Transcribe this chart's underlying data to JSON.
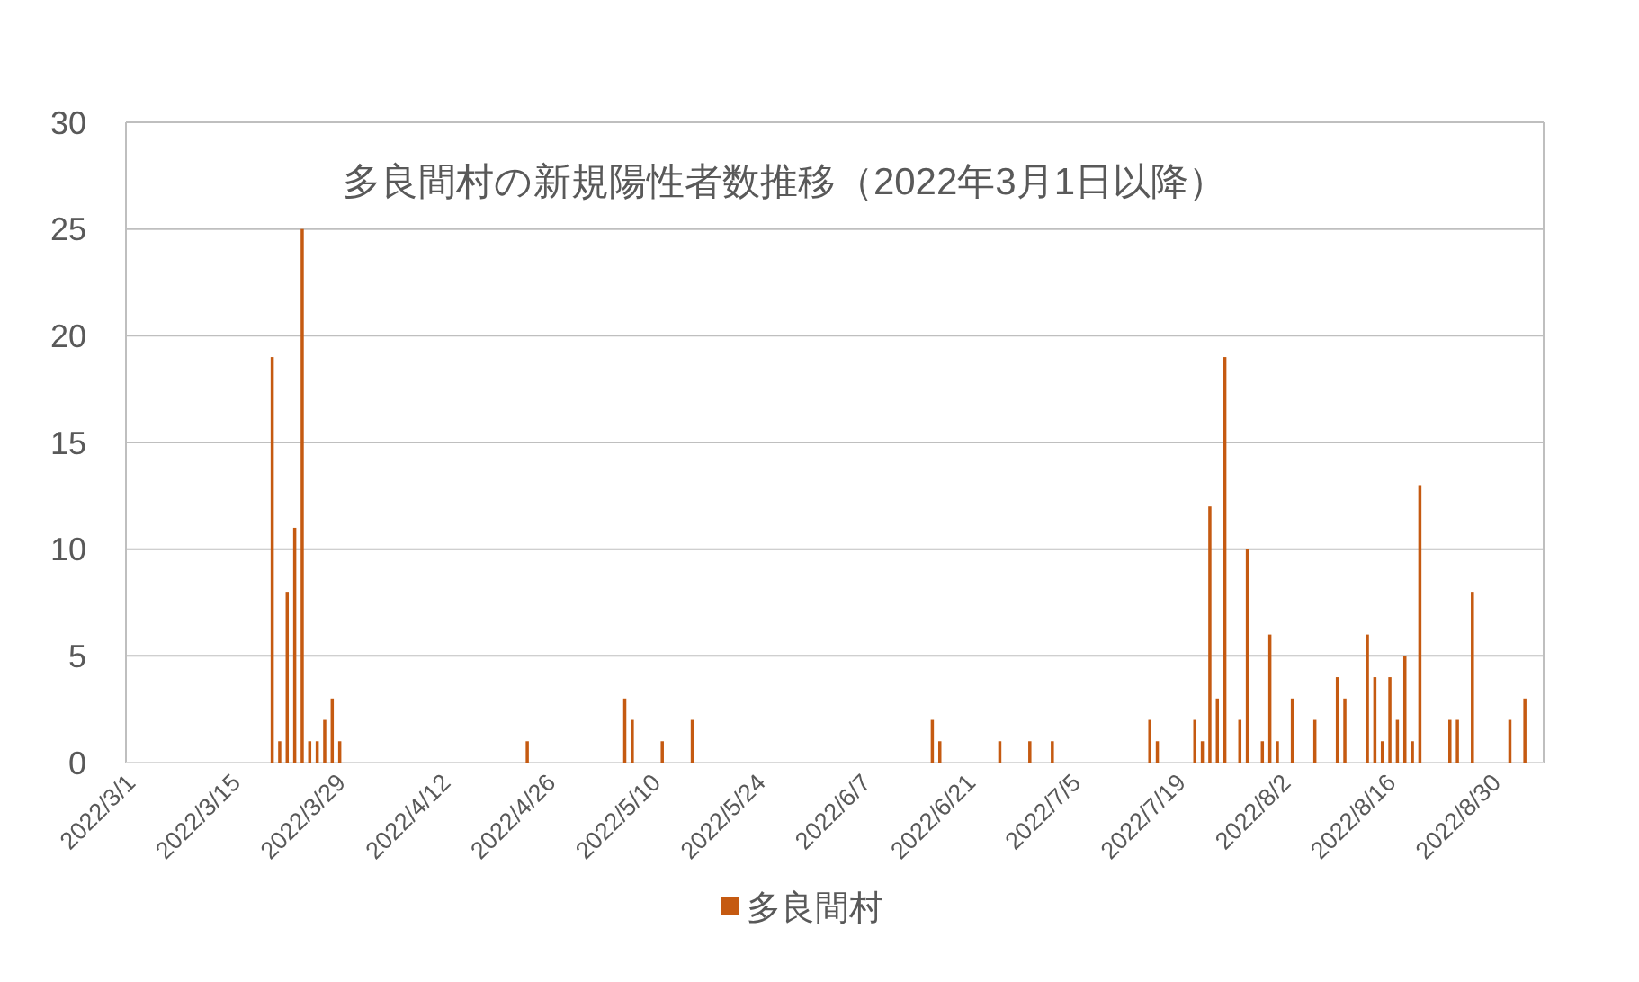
{
  "chart_data": {
    "type": "bar",
    "title": "多良間村の新規陽性者数推移（2022年3月1日以降）",
    "x": [
      "2022-03-20",
      "2022-03-21",
      "2022-03-22",
      "2022-03-23",
      "2022-03-24",
      "2022-03-25",
      "2022-03-26",
      "2022-03-27",
      "2022-03-28",
      "2022-03-29",
      "2022-04-23",
      "2022-05-06",
      "2022-05-07",
      "2022-05-11",
      "2022-05-15",
      "2022-06-16",
      "2022-06-17",
      "2022-06-25",
      "2022-06-29",
      "2022-07-02",
      "2022-07-15",
      "2022-07-16",
      "2022-07-21",
      "2022-07-22",
      "2022-07-23",
      "2022-07-24",
      "2022-07-25",
      "2022-07-27",
      "2022-07-28",
      "2022-07-30",
      "2022-07-31",
      "2022-08-01",
      "2022-08-03",
      "2022-08-06",
      "2022-08-09",
      "2022-08-10",
      "2022-08-13",
      "2022-08-14",
      "2022-08-15",
      "2022-08-16",
      "2022-08-17",
      "2022-08-18",
      "2022-08-19",
      "2022-08-20",
      "2022-08-24",
      "2022-08-25",
      "2022-08-27",
      "2022-09-01",
      "2022-09-03"
    ],
    "series": [
      {
        "name": "多良間村",
        "color": "#c55a11",
        "values": [
          19,
          1,
          8,
          11,
          25,
          1,
          1,
          2,
          3,
          1,
          1,
          3,
          2,
          1,
          2,
          2,
          1,
          1,
          1,
          1,
          2,
          1,
          2,
          1,
          12,
          3,
          19,
          2,
          10,
          1,
          6,
          1,
          3,
          2,
          4,
          3,
          6,
          4,
          1,
          4,
          2,
          5,
          1,
          13,
          2,
          2,
          8,
          2,
          3
        ]
      }
    ],
    "xlim": [
      "2022-02-28T12:00",
      "2022-09-05T12:00"
    ],
    "xticks": [
      {
        "value": "2022-03-01",
        "label": "2022/3/1"
      },
      {
        "value": "2022-03-15",
        "label": "2022/3/15"
      },
      {
        "value": "2022-03-29",
        "label": "2022/3/29"
      },
      {
        "value": "2022-04-12",
        "label": "2022/4/12"
      },
      {
        "value": "2022-04-26",
        "label": "2022/4/26"
      },
      {
        "value": "2022-05-10",
        "label": "2022/5/10"
      },
      {
        "value": "2022-05-24",
        "label": "2022/5/24"
      },
      {
        "value": "2022-06-07",
        "label": "2022/6/7"
      },
      {
        "value": "2022-06-21",
        "label": "2022/6/21"
      },
      {
        "value": "2022-07-05",
        "label": "2022/7/5"
      },
      {
        "value": "2022-07-19",
        "label": "2022/7/19"
      },
      {
        "value": "2022-08-02",
        "label": "2022/8/2"
      },
      {
        "value": "2022-08-16",
        "label": "2022/8/16"
      },
      {
        "value": "2022-08-30",
        "label": "2022/8/30"
      }
    ],
    "ylim": [
      0,
      30
    ],
    "yticks": [
      0,
      5,
      10,
      15,
      20,
      25,
      30
    ],
    "grid": "y",
    "legend": "bottom"
  }
}
